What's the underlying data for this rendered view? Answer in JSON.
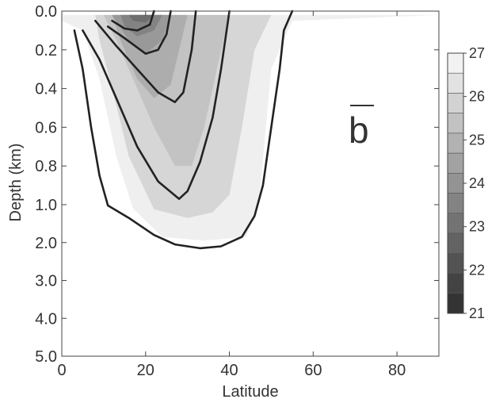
{
  "chart_data": {
    "type": "contour",
    "xlabel": "Latitude",
    "ylabel": "Depth (km)",
    "xlim": [
      0,
      90
    ],
    "x_ticks": [
      0,
      20,
      40,
      60,
      80
    ],
    "x_tick_labels": [
      "0",
      "20",
      "40",
      "60",
      "80"
    ],
    "y_ticks": [
      0.0,
      0.2,
      0.4,
      0.6,
      0.8,
      1.0,
      2.0,
      3.0,
      4.0,
      5.0
    ],
    "y_tick_labels": [
      "0.0",
      "0.2",
      "0.4",
      "0.6",
      "0.8",
      "1.0",
      "2.0",
      "3.0",
      "4.0",
      "5.0"
    ],
    "y_axis_scale": "piecewise: linear 0-1 km stretched over upper part, linear 1-5 km below",
    "y_inverted": true,
    "annotation": "b",
    "annotation_overbar": true,
    "colorbar": {
      "labels": [
        "27",
        "26",
        "25",
        "24",
        "23",
        "22",
        "21"
      ],
      "values": [
        27,
        26,
        25,
        24,
        23,
        22,
        21
      ],
      "levels": 13,
      "color_low": "#333333",
      "color_high": "#f2f2f2"
    },
    "filled_regions": [
      {
        "level": 26.5,
        "color": "#efefef",
        "boundary": [
          [
            0,
            0.02
          ],
          [
            90,
            0.02
          ],
          [
            55,
            0.05
          ],
          [
            50,
            0.3
          ],
          [
            47,
            1.0
          ],
          [
            44,
            1.85
          ],
          [
            34,
            1.95
          ],
          [
            24,
            1.85
          ],
          [
            17,
            1.1
          ],
          [
            13,
            0.75
          ],
          [
            9,
            0.35
          ],
          [
            5,
            0.1
          ],
          [
            0,
            0.05
          ]
        ]
      },
      {
        "level": 26.0,
        "color": "#d6d6d6",
        "boundary": [
          [
            8,
            0.02
          ],
          [
            50,
            0.02
          ],
          [
            46,
            0.2
          ],
          [
            43,
            0.6
          ],
          [
            40,
            0.95
          ],
          [
            36,
            1.2
          ],
          [
            30,
            1.35
          ],
          [
            22,
            1.12
          ],
          [
            16,
            0.75
          ],
          [
            12,
            0.4
          ],
          [
            9,
            0.15
          ]
        ]
      },
      {
        "level": 25.5,
        "color": "#c3c3c3",
        "boundary": [
          [
            10,
            0.02
          ],
          [
            40,
            0.02
          ],
          [
            37,
            0.3
          ],
          [
            34,
            0.6
          ],
          [
            31,
            0.8
          ],
          [
            27,
            0.8
          ],
          [
            22,
            0.6
          ],
          [
            17,
            0.35
          ],
          [
            13,
            0.15
          ]
        ]
      },
      {
        "level": 25.0,
        "color": "#adadad",
        "boundary": [
          [
            12,
            0.02
          ],
          [
            30,
            0.02
          ],
          [
            28,
            0.2
          ],
          [
            26,
            0.38
          ],
          [
            22,
            0.45
          ],
          [
            18,
            0.35
          ],
          [
            14,
            0.15
          ]
        ]
      },
      {
        "level": 24.5,
        "color": "#999999",
        "boundary": [
          [
            12,
            0.02
          ],
          [
            26,
            0.02
          ],
          [
            24,
            0.15
          ],
          [
            20,
            0.22
          ],
          [
            16,
            0.15
          ]
        ]
      },
      {
        "level": 24.0,
        "color": "#838383",
        "boundary": [
          [
            14,
            0.02
          ],
          [
            24,
            0.02
          ],
          [
            22,
            0.1
          ],
          [
            18,
            0.13
          ],
          [
            15,
            0.08
          ]
        ]
      },
      {
        "level": 23.5,
        "color": "#6e6e6e",
        "boundary": [
          [
            16,
            0.02
          ],
          [
            22,
            0.02
          ],
          [
            20,
            0.06
          ],
          [
            17,
            0.05
          ]
        ]
      }
    ],
    "contour_lines": [
      {
        "points": [
          [
            3,
            0.1
          ],
          [
            5,
            0.3
          ],
          [
            7,
            0.6
          ],
          [
            9,
            0.85
          ],
          [
            11,
            1.02
          ],
          [
            16,
            1.35
          ],
          [
            22,
            1.8
          ],
          [
            27,
            2.05
          ],
          [
            33,
            2.15
          ],
          [
            38,
            2.1
          ],
          [
            43,
            1.85
          ],
          [
            46,
            1.3
          ],
          [
            48,
            0.9
          ],
          [
            50,
            0.6
          ],
          [
            52,
            0.3
          ],
          [
            53,
            0.1
          ],
          [
            55,
            0.0
          ]
        ]
      },
      {
        "points": [
          [
            5,
            0.1
          ],
          [
            9,
            0.25
          ],
          [
            13,
            0.45
          ],
          [
            18,
            0.7
          ],
          [
            23,
            0.88
          ],
          [
            28,
            0.97
          ],
          [
            30,
            0.93
          ],
          [
            33,
            0.78
          ],
          [
            36,
            0.55
          ],
          [
            38,
            0.3
          ],
          [
            40,
            0.0
          ]
        ]
      },
      {
        "points": [
          [
            8,
            0.05
          ],
          [
            13,
            0.18
          ],
          [
            18,
            0.3
          ],
          [
            23,
            0.42
          ],
          [
            27,
            0.47
          ],
          [
            29,
            0.42
          ],
          [
            31,
            0.2
          ],
          [
            32,
            0.0
          ]
        ]
      },
      {
        "points": [
          [
            11,
            0.08
          ],
          [
            15,
            0.14
          ],
          [
            20,
            0.22
          ],
          [
            23,
            0.2
          ],
          [
            25,
            0.12
          ],
          [
            26,
            0.0
          ]
        ]
      },
      {
        "points": [
          [
            12,
            0.05
          ],
          [
            15,
            0.09
          ],
          [
            18,
            0.1
          ],
          [
            21,
            0.07
          ],
          [
            22,
            0.0
          ]
        ]
      }
    ],
    "grid": false,
    "legend": "colorbar-right"
  }
}
